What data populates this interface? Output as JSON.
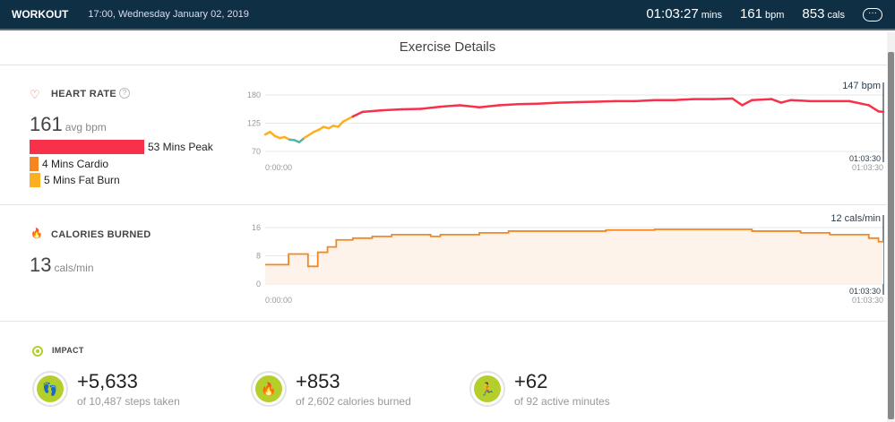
{
  "header": {
    "title": "WORKOUT",
    "datetime": "17:00, Wednesday January 02, 2019",
    "duration": "01:03:27",
    "duration_unit": "mins",
    "bpm": "161",
    "bpm_unit": "bpm",
    "cals": "853",
    "cals_unit": "cals",
    "more_label": "···"
  },
  "page_title": "Exercise Details",
  "heart_rate": {
    "label": "HEART RATE",
    "help": "?",
    "avg": "161",
    "avg_unit": "avg bpm",
    "zones": [
      {
        "label": "53 Mins Peak",
        "minutes": 53,
        "color": "#f63149"
      },
      {
        "label": "4 Mins Cardio",
        "minutes": 4,
        "color": "#f6861f"
      },
      {
        "label": "5 Mins Fat Burn",
        "minutes": 5,
        "color": "#fbb021"
      }
    ]
  },
  "calories": {
    "label": "CALORIES BURNED",
    "avg": "13",
    "avg_unit": "cals/min"
  },
  "chart_data": [
    {
      "type": "line",
      "title": "Heart Rate",
      "yticks": [
        "180",
        "125",
        "70"
      ],
      "ylim": [
        70,
        180
      ],
      "xlim": [
        0,
        63.5
      ],
      "x_start_label": "0:00:00",
      "x_end_label": "01:03:30",
      "x_end_label2": "01:03:30",
      "current_label": "147 bpm",
      "points": [
        [
          0,
          103
        ],
        [
          0.5,
          108
        ],
        [
          1,
          100
        ],
        [
          1.5,
          96
        ],
        [
          2,
          98
        ],
        [
          2.5,
          93
        ],
        [
          3,
          92
        ],
        [
          3.5,
          88
        ],
        [
          4,
          96
        ],
        [
          4.5,
          102
        ],
        [
          5,
          108
        ],
        [
          5.5,
          112
        ],
        [
          6,
          118
        ],
        [
          6.5,
          115
        ],
        [
          7,
          120
        ],
        [
          7.5,
          118
        ],
        [
          8,
          128
        ],
        [
          9,
          138
        ],
        [
          10,
          147
        ],
        [
          12,
          150
        ],
        [
          14,
          152
        ],
        [
          16,
          153
        ],
        [
          18,
          157
        ],
        [
          20,
          160
        ],
        [
          22,
          156
        ],
        [
          24,
          160
        ],
        [
          26,
          162
        ],
        [
          28,
          163
        ],
        [
          30,
          165
        ],
        [
          32,
          166
        ],
        [
          34,
          167
        ],
        [
          36,
          168
        ],
        [
          38,
          168
        ],
        [
          40,
          170
        ],
        [
          42,
          170
        ],
        [
          44,
          172
        ],
        [
          46,
          172
        ],
        [
          48,
          173
        ],
        [
          49,
          160
        ],
        [
          50,
          170
        ],
        [
          52,
          172
        ],
        [
          53,
          165
        ],
        [
          54,
          170
        ],
        [
          56,
          168
        ],
        [
          58,
          168
        ],
        [
          60,
          168
        ],
        [
          62,
          160
        ],
        [
          63,
          148
        ],
        [
          63.5,
          147
        ]
      ]
    },
    {
      "type": "area",
      "title": "Calories Burned",
      "yticks": [
        "16",
        "8",
        "0"
      ],
      "ylim": [
        0,
        16
      ],
      "xlim": [
        0,
        63.5
      ],
      "x_start_label": "0:00:00",
      "x_end_label": "01:03:30",
      "x_end_label2": "01:03:30",
      "current_label": "12 cals/min",
      "steps": [
        [
          0,
          5.5
        ],
        [
          2.4,
          8.5
        ],
        [
          4.4,
          5
        ],
        [
          5.4,
          9
        ],
        [
          6.4,
          10.5
        ],
        [
          7.3,
          12.5
        ],
        [
          9,
          13
        ],
        [
          11,
          13.5
        ],
        [
          13,
          14
        ],
        [
          15,
          14
        ],
        [
          17,
          13.5
        ],
        [
          18,
          14
        ],
        [
          22,
          14.5
        ],
        [
          25,
          15
        ],
        [
          30,
          15
        ],
        [
          35,
          15.3
        ],
        [
          40,
          15.5
        ],
        [
          45,
          15.5
        ],
        [
          50,
          15
        ],
        [
          55,
          14.5
        ],
        [
          58,
          14
        ],
        [
          62,
          13
        ],
        [
          63,
          12
        ]
      ]
    }
  ],
  "impact": {
    "label": "IMPACT",
    "items": [
      {
        "icon": "footsteps-icon",
        "glyph": "👣",
        "value": "+5,633",
        "sub": "of 10,487 steps taken"
      },
      {
        "icon": "flame-icon",
        "glyph": "🔥",
        "value": "+853",
        "sub": "of 2,602 calories burned"
      },
      {
        "icon": "runner-icon",
        "glyph": "🏃",
        "value": "+62",
        "sub": "of 92 active minutes"
      }
    ]
  },
  "colors": {
    "peak": "#f63149",
    "cardio": "#f6861f",
    "fatburn": "#fbb021",
    "below": "#4fb8a8",
    "cal": "#f6861f",
    "accent": "#b4cf2c",
    "header": "#0f2f45"
  }
}
